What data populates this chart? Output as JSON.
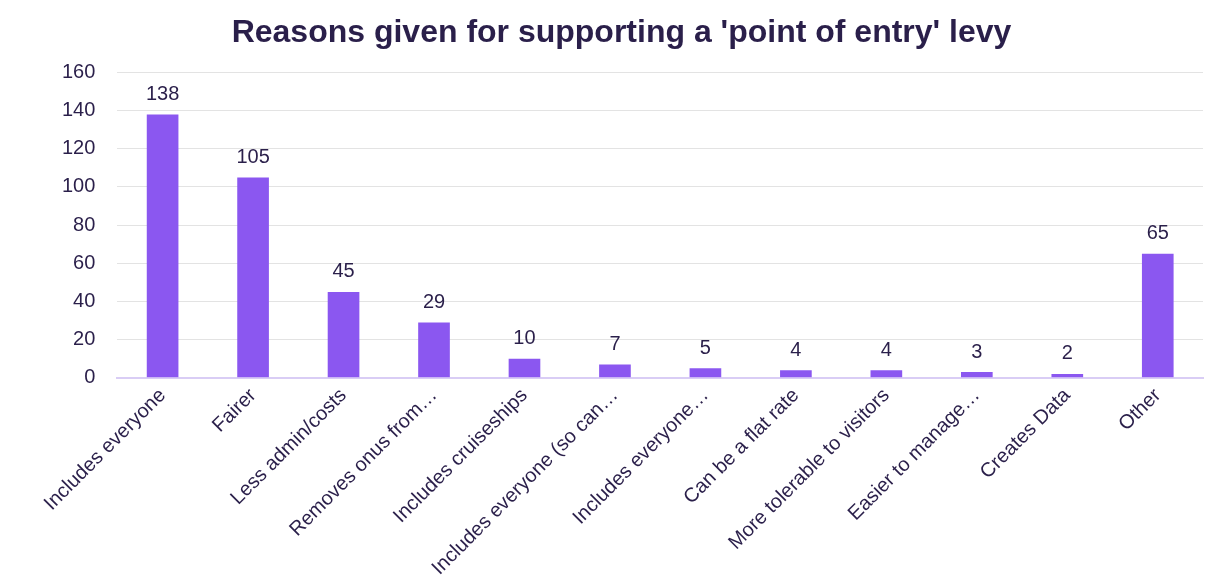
{
  "chart_data": {
    "type": "bar",
    "title": "Reasons given for supporting a 'point of entry' levy",
    "categories": [
      "Includes everyone",
      "Fairer",
      "Less admin/costs",
      "Removes onus from…",
      "Includes cruiseships",
      "Includes everyone (so can…",
      "Includes everyone…",
      "Can be a flat rate",
      "More tolerable to visitors",
      "Easier to manage…",
      "Creates Data",
      "Other"
    ],
    "values": [
      138,
      105,
      45,
      29,
      10,
      7,
      5,
      4,
      4,
      3,
      2,
      65
    ],
    "color": "#8b57f0",
    "ylim": [
      0,
      160
    ],
    "yticks": [
      0,
      20,
      40,
      60,
      80,
      100,
      120,
      140,
      160
    ],
    "grid": "y",
    "data_labels": true,
    "legend": false
  }
}
